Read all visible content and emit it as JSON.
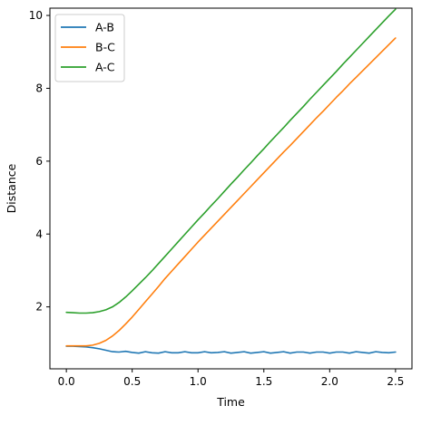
{
  "chart_data": {
    "type": "line",
    "title": "",
    "xlabel": "Time",
    "ylabel": "Distance",
    "xlim": [
      -0.125,
      2.625
    ],
    "ylim": [
      0.3,
      10.2
    ],
    "xticks": [
      0.0,
      0.5,
      1.0,
      1.5,
      2.0,
      2.5
    ],
    "xtick_labels": [
      "0.0",
      "0.5",
      "1.0",
      "1.5",
      "2.0",
      "2.5"
    ],
    "yticks": [
      2,
      4,
      6,
      8,
      10
    ],
    "ytick_labels": [
      "2",
      "4",
      "6",
      "8",
      "10"
    ],
    "grid": false,
    "legend_position": "top-left",
    "series": [
      {
        "name": "A-B",
        "color": "#1f77b4",
        "x": [
          0.0,
          0.05,
          0.1,
          0.15,
          0.2,
          0.25,
          0.3,
          0.35,
          0.4,
          0.45,
          0.5,
          0.55,
          0.6,
          0.65,
          0.7,
          0.75,
          0.8,
          0.85,
          0.9,
          0.95,
          1.0,
          1.05,
          1.1,
          1.15,
          1.2,
          1.25,
          1.3,
          1.35,
          1.4,
          1.45,
          1.5,
          1.55,
          1.6,
          1.65,
          1.7,
          1.75,
          1.8,
          1.85,
          1.9,
          1.95,
          2.0,
          2.05,
          2.1,
          2.15,
          2.2,
          2.25,
          2.3,
          2.35,
          2.4,
          2.45,
          2.5
        ],
        "y": [
          0.92,
          0.92,
          0.91,
          0.9,
          0.88,
          0.85,
          0.81,
          0.77,
          0.76,
          0.78,
          0.75,
          0.73,
          0.77,
          0.74,
          0.73,
          0.77,
          0.74,
          0.74,
          0.77,
          0.74,
          0.74,
          0.77,
          0.74,
          0.75,
          0.77,
          0.73,
          0.75,
          0.77,
          0.73,
          0.75,
          0.77,
          0.73,
          0.75,
          0.77,
          0.73,
          0.76,
          0.76,
          0.73,
          0.76,
          0.76,
          0.73,
          0.76,
          0.76,
          0.73,
          0.77,
          0.75,
          0.73,
          0.77,
          0.75,
          0.74,
          0.76
        ]
      },
      {
        "name": "B-C",
        "color": "#ff7f0e",
        "x": [
          0.0,
          0.05,
          0.1,
          0.15,
          0.2,
          0.25,
          0.3,
          0.35,
          0.4,
          0.45,
          0.5,
          0.55,
          0.6,
          0.65,
          0.7,
          0.75,
          0.8,
          0.85,
          0.9,
          0.95,
          1.0,
          1.05,
          1.1,
          1.15,
          1.2,
          1.25,
          1.3,
          1.35,
          1.4,
          1.45,
          1.5,
          1.55,
          1.6,
          1.65,
          1.7,
          1.75,
          1.8,
          1.85,
          1.9,
          1.95,
          2.0,
          2.05,
          2.1,
          2.15,
          2.2,
          2.25,
          2.3,
          2.35,
          2.4,
          2.45,
          2.5
        ],
        "y": [
          0.93,
          0.93,
          0.93,
          0.93,
          0.95,
          1.0,
          1.08,
          1.2,
          1.35,
          1.53,
          1.72,
          1.93,
          2.14,
          2.35,
          2.56,
          2.78,
          2.98,
          3.18,
          3.38,
          3.58,
          3.78,
          3.97,
          4.16,
          4.35,
          4.54,
          4.73,
          4.92,
          5.11,
          5.3,
          5.49,
          5.68,
          5.87,
          6.06,
          6.25,
          6.43,
          6.62,
          6.81,
          7.0,
          7.19,
          7.37,
          7.56,
          7.75,
          7.93,
          8.12,
          8.3,
          8.48,
          8.66,
          8.84,
          9.02,
          9.2,
          9.38
        ]
      },
      {
        "name": "A-C",
        "color": "#2ca02c",
        "x": [
          0.0,
          0.05,
          0.1,
          0.15,
          0.2,
          0.25,
          0.3,
          0.35,
          0.4,
          0.45,
          0.5,
          0.55,
          0.6,
          0.65,
          0.7,
          0.75,
          0.8,
          0.85,
          0.9,
          0.95,
          1.0,
          1.05,
          1.1,
          1.15,
          1.2,
          1.25,
          1.3,
          1.35,
          1.4,
          1.45,
          1.5,
          1.55,
          1.6,
          1.65,
          1.7,
          1.75,
          1.8,
          1.85,
          1.9,
          1.95,
          2.0,
          2.05,
          2.1,
          2.15,
          2.2,
          2.25,
          2.3,
          2.35,
          2.4,
          2.45,
          2.5
        ],
        "y": [
          1.85,
          1.84,
          1.83,
          1.83,
          1.84,
          1.87,
          1.92,
          2.0,
          2.12,
          2.27,
          2.44,
          2.62,
          2.8,
          2.99,
          3.19,
          3.39,
          3.59,
          3.79,
          3.99,
          4.19,
          4.39,
          4.58,
          4.78,
          4.97,
          5.17,
          5.37,
          5.56,
          5.76,
          5.95,
          6.15,
          6.34,
          6.54,
          6.73,
          6.92,
          7.12,
          7.31,
          7.5,
          7.7,
          7.89,
          8.08,
          8.27,
          8.46,
          8.66,
          8.85,
          9.04,
          9.23,
          9.42,
          9.61,
          9.8,
          9.99,
          10.17
        ]
      }
    ]
  }
}
